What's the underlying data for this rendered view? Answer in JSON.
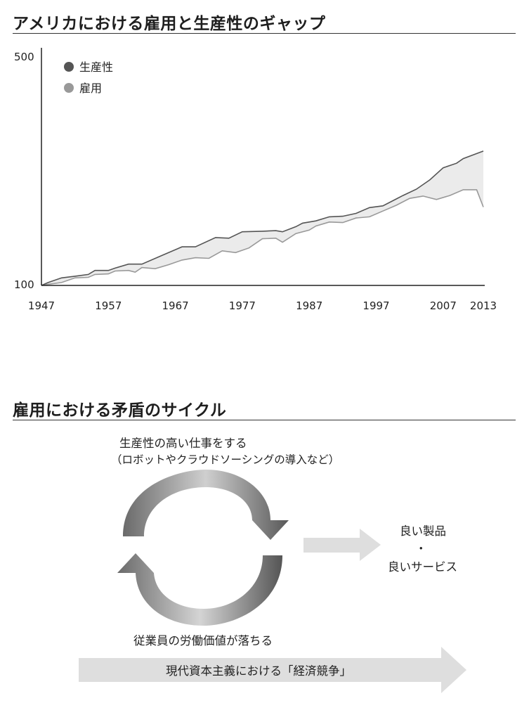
{
  "chart_section": {
    "title": "アメリカにおける雇用と生産性のギャップ"
  },
  "chart_data": {
    "type": "area",
    "x_ticks": [
      "1947",
      "1957",
      "1967",
      "1977",
      "1987",
      "1997",
      "2007",
      "2013"
    ],
    "ylim": [
      100,
      500
    ],
    "y_ticks": [
      "100",
      "500"
    ],
    "xlim": [
      1947,
      2013
    ],
    "legend_position": "top-left",
    "grid": false,
    "series": [
      {
        "name": "生産性",
        "color": "#555555",
        "x": [
          1947,
          1948,
          1950,
          1952,
          1954,
          1955,
          1957,
          1958,
          1960,
          1962,
          1965,
          1968,
          1970,
          1973,
          1975,
          1977,
          1980,
          1982,
          1983,
          1985,
          1986,
          1988,
          1990,
          1992,
          1994,
          1996,
          1998,
          2000,
          2001,
          2003,
          2005,
          2007,
          2009,
          2010,
          2013
        ],
        "values": [
          100,
          105,
          113,
          116,
          119,
          126,
          126,
          130,
          137,
          137,
          152,
          167,
          167,
          183,
          182,
          193,
          194,
          195,
          193,
          202,
          208,
          212,
          219,
          220,
          225,
          235,
          238,
          250,
          256,
          267,
          283,
          304,
          312,
          320,
          333
        ]
      },
      {
        "name": "雇用",
        "color": "#999999",
        "x": [
          1947,
          1948,
          1950,
          1952,
          1954,
          1955,
          1957,
          1958,
          1960,
          1961,
          1962,
          1964,
          1966,
          1968,
          1970,
          1972,
          1974,
          1976,
          1978,
          1980,
          1982,
          1983,
          1985,
          1987,
          1988,
          1990,
          1992,
          1994,
          1996,
          1998,
          2000,
          2002,
          2004,
          2006,
          2008,
          2010,
          2012,
          2013
        ],
        "values": [
          100,
          102,
          105,
          113,
          114,
          119,
          120,
          125,
          126,
          123,
          131,
          129,
          136,
          144,
          148,
          147,
          160,
          157,
          165,
          181,
          182,
          175,
          190,
          196,
          203,
          210,
          209,
          217,
          219,
          229,
          239,
          251,
          255,
          249,
          256,
          266,
          266,
          236
        ]
      }
    ]
  },
  "cycle_section": {
    "title": "雇用における矛盾のサイクル",
    "top_text_line1": "生産性の高い仕事をする",
    "top_text_line2": "（ロボットやクラウドソーシングの導入など）",
    "result_line1": "良い製品",
    "result_dot": "・",
    "result_line2": "良いサービス",
    "bottom_text": "従業員の労働価値が落ちる",
    "banner_text": "現代資本主義における「経済競争」"
  },
  "colors": {
    "gap_fill": "#ebebeb",
    "productivity": "#555555",
    "employment": "#999999",
    "arrow_gray": "#dedede"
  }
}
